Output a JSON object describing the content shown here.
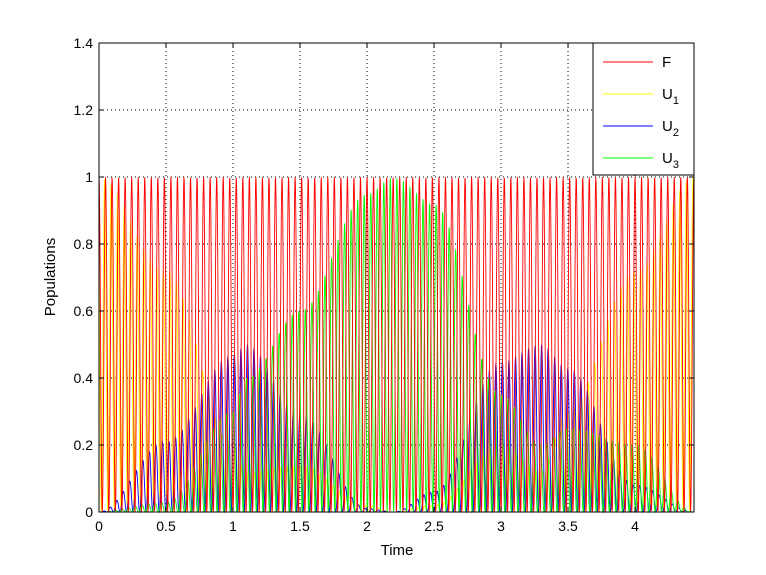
{
  "chart_data": {
    "type": "line",
    "xlabel": "Time",
    "ylabel": "Populations",
    "xlim": [
      0,
      4.44
    ],
    "ylim": [
      0,
      1.4
    ],
    "x_ticks": [
      "0",
      "0.5",
      "1",
      "1.5",
      "2",
      "2.5",
      "3",
      "3.5",
      "4"
    ],
    "y_ticks": [
      "0",
      "0.2",
      "0.4",
      "0.6",
      "0.8",
      "1",
      "1.2",
      "1.4"
    ],
    "grid": true,
    "legend_position": "top-right",
    "series": [
      {
        "name": "F",
        "legend_main": "F",
        "legend_sub": "",
        "color": "#ff0000",
        "description_points": {
          "x": [
            0,
            4.44
          ],
          "y_range": [
            0,
            1
          ]
        }
      },
      {
        "name": "U1",
        "legend_main": "U",
        "legend_sub": "1",
        "color": "#ffff00",
        "envelope": {
          "x": [
            0,
            0.5,
            1.0,
            1.1,
            1.5,
            2.0,
            2.2,
            2.5,
            3.0,
            3.3,
            3.5,
            4.0,
            4.44
          ],
          "y": [
            1.0,
            0.72,
            0.2,
            0.12,
            0.14,
            0.02,
            0.0,
            0.02,
            0.2,
            0.12,
            0.3,
            0.72,
            1.0
          ]
        }
      },
      {
        "name": "U2",
        "legend_main": "U",
        "legend_sub": "2",
        "color": "#0000ff",
        "envelope": {
          "x": [
            0,
            0.5,
            1.0,
            1.1,
            1.5,
            2.0,
            2.2,
            2.5,
            3.0,
            3.3,
            3.5,
            4.0,
            4.44
          ],
          "y": [
            0.0,
            0.21,
            0.47,
            0.5,
            0.29,
            0.01,
            0.0,
            0.06,
            0.45,
            0.5,
            0.43,
            0.08,
            0.0
          ]
        }
      },
      {
        "name": "U3",
        "legend_main": "U",
        "legend_sub": "3",
        "color": "#00ff00",
        "envelope": {
          "x": [
            0,
            0.5,
            1.0,
            1.1,
            1.5,
            2.0,
            2.2,
            2.5,
            3.0,
            3.3,
            3.5,
            4.0,
            4.44
          ],
          "y": [
            0.0,
            0.03,
            0.3,
            0.4,
            0.6,
            0.95,
            1.0,
            0.92,
            0.35,
            0.2,
            0.25,
            0.2,
            0.0
          ]
        }
      }
    ],
    "oscillation_frequency_note": "fast"
  }
}
